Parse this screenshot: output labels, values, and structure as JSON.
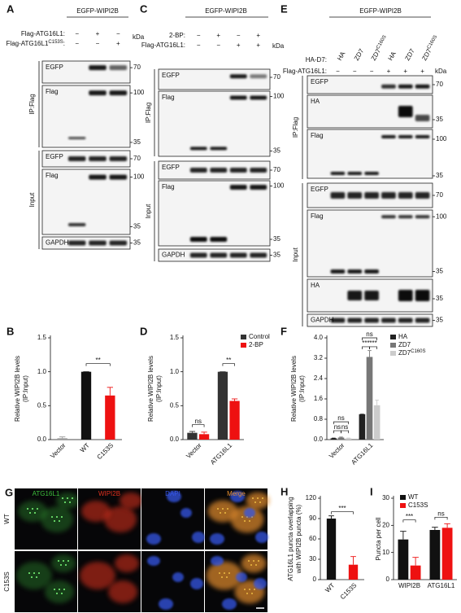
{
  "figure": {
    "panels": [
      {
        "label": "A",
        "header": "EGFP-WIPI2B",
        "kda": "kDa",
        "conditions": [
          {
            "name": {
              "base": "Flag-ATG16L1:"
            },
            "signs": [
              "−",
              "+",
              "−"
            ]
          },
          {
            "name": {
              "base": "Flag-ATG16L1",
              "sup": "C153S",
              "tail": ":"
            },
            "signs": [
              "−",
              "−",
              "+"
            ]
          }
        ],
        "sections": [
          "IP:Flag",
          "Input"
        ],
        "blots": [
          {
            "label": "EGFP",
            "markers": [
              "70"
            ]
          },
          {
            "label": "Flag",
            "markers": [
              "100",
              "35"
            ]
          },
          {
            "label": "EGFP",
            "markers": [
              "70"
            ]
          },
          {
            "label": "Flag",
            "markers": [
              "100",
              "35"
            ]
          },
          {
            "label": "GAPDH",
            "markers": [
              "35"
            ]
          }
        ]
      },
      {
        "label": "C",
        "header": "EGFP-WIPI2B",
        "kda": "kDa",
        "conditions": [
          {
            "name": {
              "base": "2-BP:"
            },
            "signs": [
              "−",
              "+",
              "−",
              "+"
            ]
          },
          {
            "name": {
              "base": "Flag-ATG16L1:"
            },
            "signs": [
              "−",
              "−",
              "+",
              "+"
            ]
          }
        ],
        "sections": [
          "IP:Flag",
          "Input"
        ],
        "blots": [
          {
            "label": "EGFP",
            "markers": [
              "70"
            ]
          },
          {
            "label": "Flag",
            "markers": [
              "100",
              "35"
            ]
          },
          {
            "label": "EGFP",
            "markers": [
              "70"
            ]
          },
          {
            "label": "Flag",
            "markers": [
              "100",
              "35"
            ]
          },
          {
            "label": "GAPDH",
            "markers": [
              "35"
            ]
          }
        ]
      },
      {
        "label": "E",
        "header": "EGFP-WIPI2B",
        "kda": "kDa",
        "lane_title": "HA-D7:",
        "lanes": [
          {
            "base": "HA"
          },
          {
            "base": "ZD7"
          },
          {
            "base": "ZD7",
            "sup": "C160S"
          },
          {
            "base": "HA"
          },
          {
            "base": "ZD7"
          },
          {
            "base": "ZD7",
            "sup": "C160S"
          }
        ],
        "conditions": [
          {
            "name": {
              "base": "Flag-ATG16L1:"
            },
            "signs": [
              "−",
              "−",
              "−",
              "+",
              "+",
              "+"
            ]
          }
        ],
        "sections": [
          "IP:Flag",
          "Input"
        ],
        "blots": [
          {
            "label": "EGFP",
            "markers": [
              "70"
            ]
          },
          {
            "label": "HA",
            "markers": [
              "35"
            ]
          },
          {
            "label": "Flag",
            "markers": [
              "100",
              "35"
            ]
          },
          {
            "label": "EGFP",
            "markers": [
              "70"
            ]
          },
          {
            "label": "Flag",
            "markers": [
              "100",
              "35"
            ]
          },
          {
            "label": "HA",
            "markers": [
              "35"
            ]
          },
          {
            "label": "GAPDH",
            "markers": [
              "35"
            ]
          }
        ]
      }
    ],
    "microscopy": {
      "label": "G",
      "channels": [
        {
          "name": "ATG16L1",
          "color": "#3cbf3c"
        },
        {
          "name": "WIPI2B",
          "color": "#e0301e"
        },
        {
          "name": "DAPI",
          "color": "#3656e6"
        },
        {
          "name": "Merge",
          "color": "#e8902e"
        }
      ],
      "rows": [
        "WT",
        "C153S"
      ]
    }
  },
  "chart_data": [
    {
      "type": "bar",
      "label": "B",
      "y_label": [
        "Relative WIPI2B levels",
        "(IP:Input)"
      ],
      "categories": [
        "Vector",
        "WT",
        "C153S"
      ],
      "values": [
        0.02,
        1.0,
        0.65
      ],
      "errors": [
        0.02,
        0,
        0.12
      ],
      "colors": [
        "#9a9a9a",
        "#111111",
        "#ee1111"
      ],
      "ylim": [
        0,
        1.5
      ],
      "yticks": [
        {
          "value": 0,
          "label": "0.0"
        },
        0.5,
        {
          "value": 1,
          "label": "1.0"
        },
        1.5
      ],
      "annotations": [
        "**"
      ]
    },
    {
      "type": "bar",
      "label": "D",
      "y_label": [
        "Relative WIPI2B levels",
        "(IP:Input)"
      ],
      "categories": [
        "Vector",
        "ATG16L1"
      ],
      "series": [
        {
          "name": "Control",
          "color": "#333333",
          "values": [
            0.1,
            1.0
          ],
          "errors": [
            0.02,
            0
          ]
        },
        {
          "name": "2-BP",
          "color": "#ee1111",
          "values": [
            0.08,
            0.57
          ],
          "errors": [
            0.03,
            0.03
          ]
        }
      ],
      "ylim": [
        0,
        1.5
      ],
      "yticks": [
        {
          "value": 0,
          "label": "0.0"
        },
        0.5,
        {
          "value": 1,
          "label": "1.0"
        },
        1.5
      ],
      "legend": "upper right",
      "annotations": [
        "ns",
        "**"
      ]
    },
    {
      "type": "bar",
      "label": "F",
      "y_label": [
        "Relative WIPI2B levels",
        "(IP:Input)"
      ],
      "categories": [
        "Vector",
        "ATG16L1"
      ],
      "series": [
        {
          "name": {
            "base": "HA"
          },
          "color": "#222222",
          "values": [
            0.05,
            1.0
          ],
          "errors": [
            0.01,
            0
          ]
        },
        {
          "name": {
            "base": "ZD7"
          },
          "color": "#777777",
          "values": [
            0.08,
            3.25
          ],
          "errors": [
            0.02,
            0.25
          ]
        },
        {
          "name": {
            "base": "ZD7",
            "sup": "C160S"
          },
          "color": "#cccccc",
          "values": [
            0.05,
            1.35
          ],
          "errors": [
            0.01,
            0.2
          ]
        }
      ],
      "ylim": [
        0,
        4
      ],
      "yticks": [
        {
          "value": 0,
          "label": "0.0"
        },
        0.8,
        1.6,
        2.4,
        3.2,
        {
          "value": 4,
          "label": "4.0"
        }
      ],
      "legend": "upper right",
      "annotations": [
        "ns",
        "ns",
        "ns",
        "***",
        "***",
        "ns"
      ]
    },
    {
      "type": "bar",
      "label": "H",
      "y_label": [
        "ATG16L1 puncta overlapping",
        "with WIPI2B puncta (%)"
      ],
      "categories": [
        "WT",
        "C153S"
      ],
      "values": [
        90,
        22
      ],
      "errors": [
        4,
        12
      ],
      "colors": [
        "#111111",
        "#ee1111"
      ],
      "ylim": [
        0,
        120
      ],
      "yticks": [
        0,
        30,
        60,
        90,
        120
      ],
      "annotations": [
        "***"
      ]
    },
    {
      "type": "bar",
      "label": "I",
      "y_label": [
        "Puncta per cell"
      ],
      "categories": [
        "WIPI2B",
        "ATG16L1"
      ],
      "series": [
        {
          "name": "WT",
          "color": "#111111",
          "values": [
            14.8,
            18.3
          ],
          "errors": [
            3,
            1
          ]
        },
        {
          "name": "C153S",
          "color": "#ee1111",
          "values": [
            5.2,
            19.1
          ],
          "errors": [
            3,
            1.5
          ]
        }
      ],
      "ylim": [
        0,
        30
      ],
      "yticks": [
        0,
        10,
        20,
        30
      ],
      "legend": "upper left",
      "annotations": [
        "***",
        "ns"
      ]
    }
  ]
}
